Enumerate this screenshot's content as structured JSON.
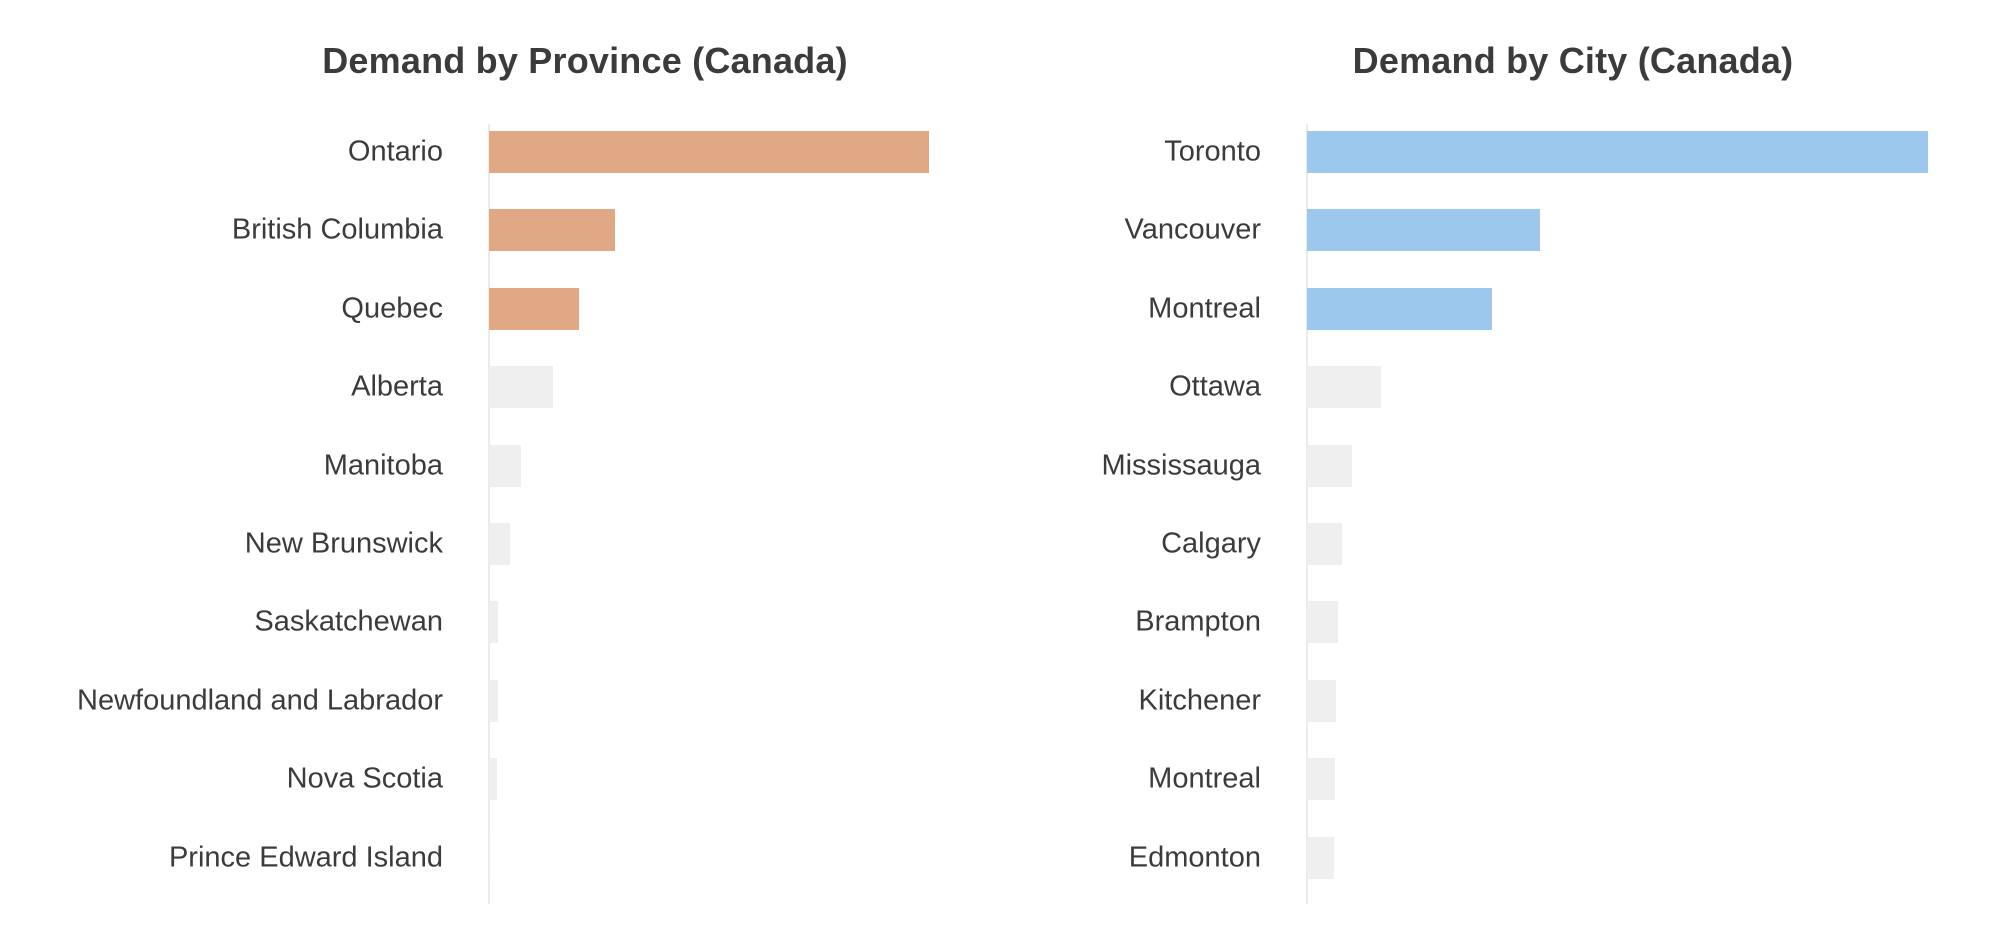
{
  "figure": {
    "background": "#ffffff",
    "title_color": "#3b3b3b",
    "label_color": "#3b3b3b",
    "axis_line_color": "#ebebeb"
  },
  "chart_data": [
    {
      "type": "bar",
      "orientation": "horizontal",
      "title": "Demand by Province (Canada)",
      "categories": [
        "Ontario",
        "British Columbia",
        "Quebec",
        "Alberta",
        "Manitoba",
        "New Brunswick",
        "Saskatchewan",
        "Newfoundland and Labrador",
        "Nova Scotia",
        "Prince Edward Island"
      ],
      "values": [
        440,
        126,
        90,
        64,
        32,
        21,
        9,
        9,
        8,
        0.5
      ],
      "value_scale": "relative demand units (no numeric axis shown in figure)",
      "sort": "descending",
      "highlight_count": 3,
      "highlight_color": "#e0a884",
      "muted_color": "#efefef",
      "grid": false,
      "legend": "none",
      "value_labels": false
    },
    {
      "type": "bar",
      "orientation": "horizontal",
      "title": "Demand by City (Canada)",
      "categories": [
        "Toronto",
        "Vancouver",
        "Montreal",
        "Ottawa",
        "Mississauga",
        "Calgary",
        "Brampton",
        "Kitchener",
        "Montreal",
        "Edmonton"
      ],
      "values": [
        621,
        233,
        185,
        74,
        45,
        35,
        31,
        29,
        28,
        27
      ],
      "value_scale": "relative demand units (no numeric axis shown in figure)",
      "sort": "descending",
      "highlight_count": 3,
      "highlight_color": "#9cc8ed",
      "muted_color": "#efefef",
      "grid": false,
      "legend": "none",
      "value_labels": false
    }
  ]
}
